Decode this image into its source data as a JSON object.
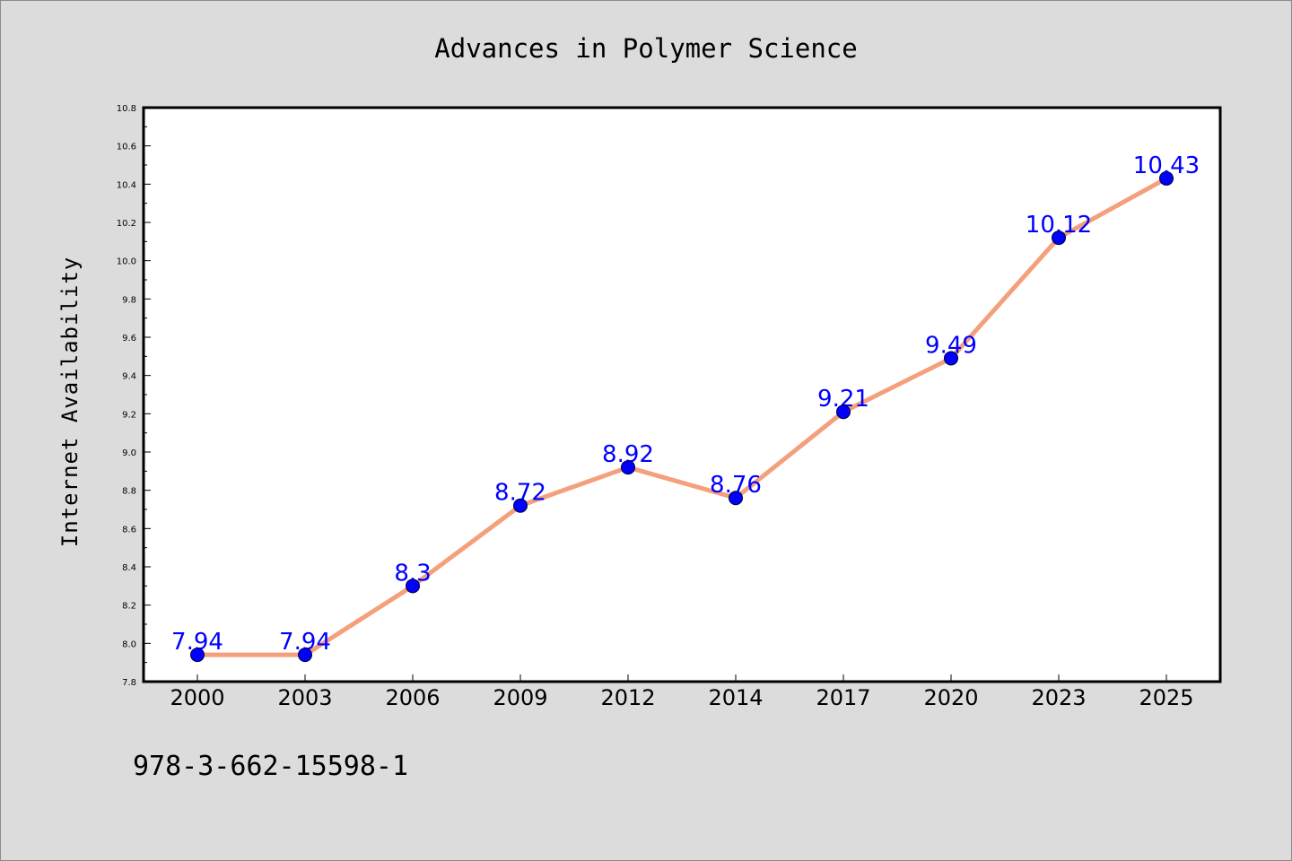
{
  "chart_data": {
    "type": "line",
    "title": "Advances in Polymer Science",
    "ylabel": "Internet Availability",
    "xlabel": "",
    "categories": [
      "2000",
      "2003",
      "2006",
      "2009",
      "2012",
      "2014",
      "2017",
      "2020",
      "2023",
      "2025"
    ],
    "series": [
      {
        "values": [
          7.94,
          7.94,
          8.3,
          8.72,
          8.92,
          8.76,
          9.21,
          9.49,
          10.12,
          10.43
        ],
        "data_labels": [
          "7.94",
          "7.94",
          "8.3",
          "8.72",
          "8.92",
          "8.76",
          "9.21",
          "9.49",
          "10.12",
          "10.43"
        ]
      }
    ],
    "ylim": [
      7.8,
      10.8
    ],
    "yticks": [
      "7.8",
      "8.0",
      "8.2",
      "8.4",
      "8.6",
      "8.8",
      "9.0",
      "9.2",
      "9.4",
      "9.6",
      "9.8",
      "10.0",
      "10.2",
      "10.4",
      "10.6",
      "10.8"
    ],
    "grid": false,
    "legend": "none",
    "line_color": "#f4a07c",
    "marker_color": "#0000ff",
    "label_color": "#0000ff",
    "background_color": "#dcdcdc",
    "plot_background_color": "#ffffff"
  },
  "footer": {
    "text": "978-3-662-15598-1"
  }
}
